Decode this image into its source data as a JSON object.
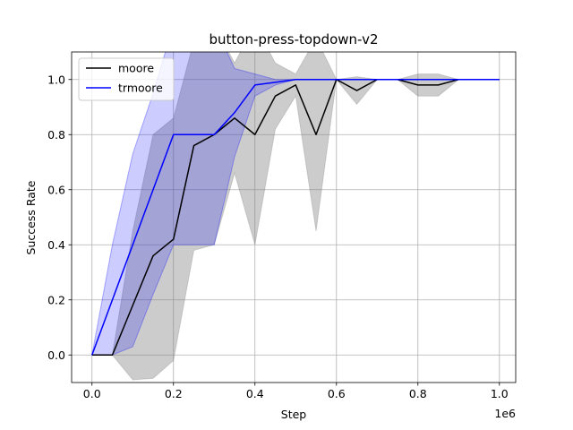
{
  "chart_data": {
    "type": "line",
    "title": "button-press-topdown-v2",
    "xlabel": "Step",
    "ylabel": "Success Rate",
    "x_offset_label": "1e6",
    "xlim": [
      -0.05,
      1.04
    ],
    "ylim": [
      -0.1,
      1.1
    ],
    "xticks": [
      0.0,
      0.2,
      0.4,
      0.6,
      0.8,
      1.0
    ],
    "xtick_labels": [
      "0.0",
      "0.2",
      "0.4",
      "0.6",
      "0.8",
      "1.0"
    ],
    "yticks": [
      0.0,
      0.2,
      0.4,
      0.6,
      0.8,
      1.0
    ],
    "ytick_labels": [
      "0.0",
      "0.2",
      "0.4",
      "0.6",
      "0.8",
      "1.0"
    ],
    "grid": true,
    "legend_position": "top-left",
    "x": [
      0.0,
      0.05,
      0.1,
      0.15,
      0.2,
      0.25,
      0.3,
      0.35,
      0.4,
      0.45,
      0.5,
      0.55,
      0.6,
      0.65,
      0.7,
      0.75,
      0.8,
      0.85,
      0.9,
      0.95,
      1.0
    ],
    "series": [
      {
        "name": "moore",
        "color": "#000000",
        "band_color": "#808080",
        "values": [
          0.0,
          0.0,
          0.18,
          0.36,
          0.42,
          0.76,
          0.8,
          0.86,
          0.8,
          0.94,
          0.98,
          0.8,
          1.0,
          0.96,
          1.0,
          1.0,
          0.98,
          0.98,
          1.0,
          1.0,
          1.0
        ],
        "lower": [
          0.0,
          0.0,
          -0.09,
          -0.085,
          -0.02,
          0.38,
          0.4,
          0.66,
          0.4,
          0.82,
          0.94,
          0.45,
          1.0,
          0.91,
          1.0,
          1.0,
          0.94,
          0.94,
          1.0,
          1.0,
          1.0
        ],
        "upper": [
          0.0,
          0.0,
          0.45,
          0.8,
          0.86,
          1.14,
          1.2,
          1.06,
          1.2,
          1.06,
          1.02,
          1.15,
          1.0,
          1.01,
          1.0,
          1.0,
          1.02,
          1.02,
          1.0,
          1.0,
          1.0
        ]
      },
      {
        "name": "trmoore",
        "color": "#0000ff",
        "band_color": "#0000ff",
        "values": [
          0.0,
          0.2,
          0.4,
          0.6,
          0.8,
          0.8,
          0.8,
          0.88,
          0.98,
          0.99,
          1.0,
          1.0,
          1.0,
          1.0,
          1.0,
          1.0,
          1.0,
          1.0,
          1.0,
          1.0,
          1.0
        ],
        "lower": [
          0.0,
          0.0,
          0.03,
          0.22,
          0.4,
          0.4,
          0.4,
          0.72,
          0.94,
          0.98,
          1.0,
          1.0,
          1.0,
          1.0,
          1.0,
          1.0,
          1.0,
          1.0,
          1.0,
          1.0,
          1.0
        ],
        "upper": [
          0.0,
          0.4,
          0.73,
          0.95,
          1.2,
          1.2,
          1.2,
          1.04,
          1.02,
          1.0,
          1.0,
          1.0,
          1.0,
          1.0,
          1.0,
          1.0,
          1.0,
          1.0,
          1.0,
          1.0,
          1.0
        ]
      }
    ]
  }
}
